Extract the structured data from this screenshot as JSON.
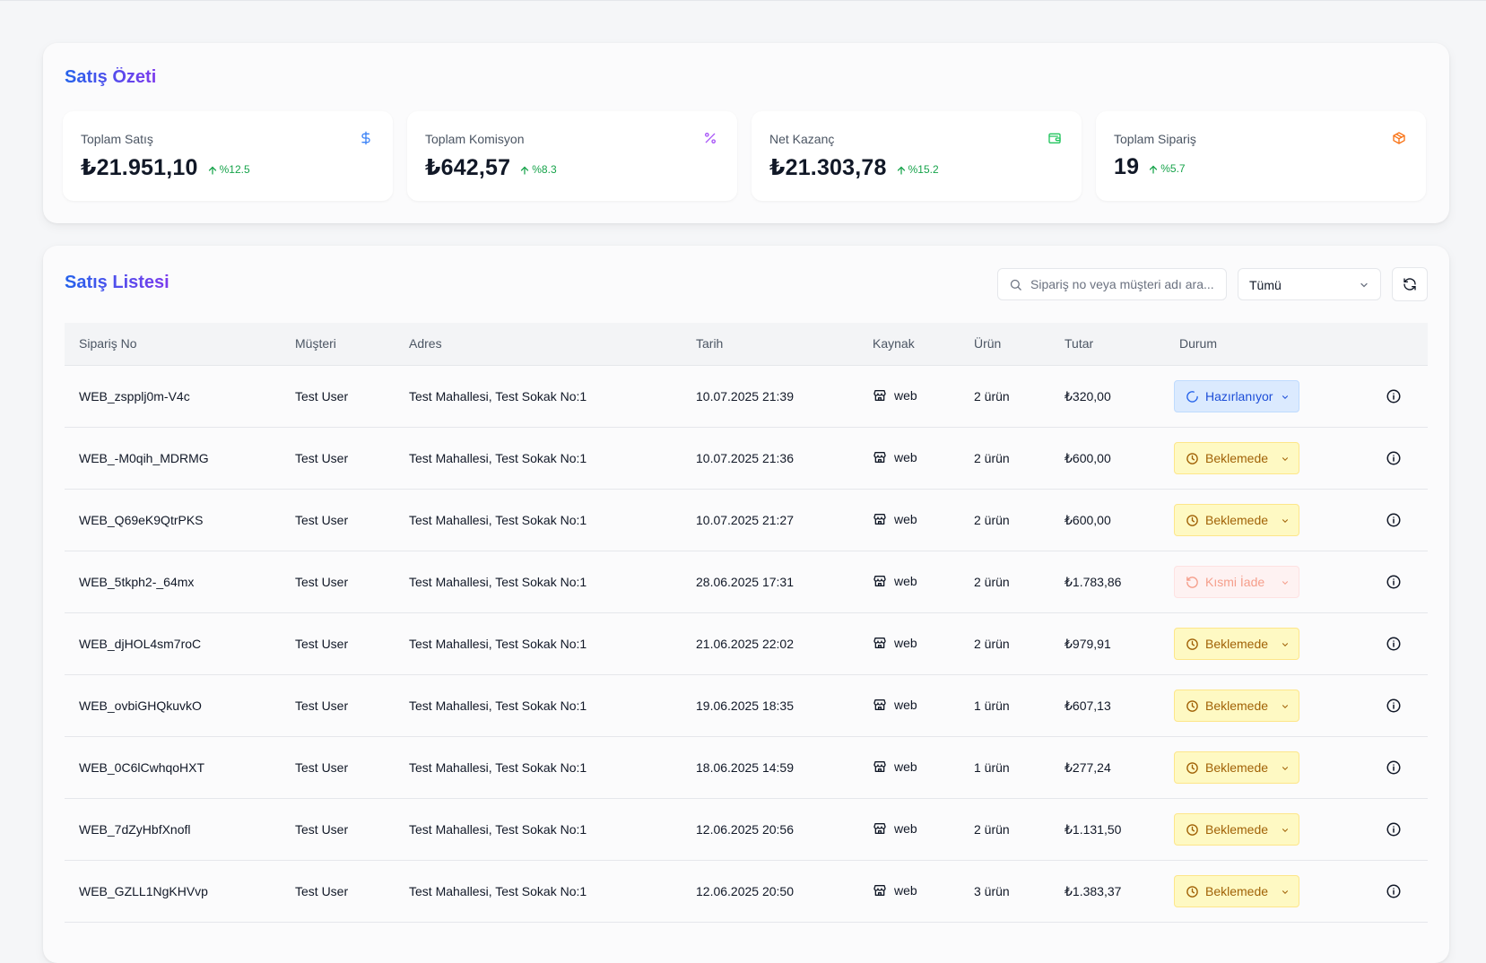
{
  "summary": {
    "title": "Satış Özeti",
    "stats": [
      {
        "label": "Toplam Satış",
        "value": "₺21.951,10",
        "change": "%12.5",
        "icon": "dollar-icon",
        "icon_color": "#3b82f6"
      },
      {
        "label": "Toplam Komisyon",
        "value": "₺642,57",
        "change": "%8.3",
        "icon": "percent-icon",
        "icon_color": "#a855f7"
      },
      {
        "label": "Net Kazanç",
        "value": "₺21.303,78",
        "change": "%15.2",
        "icon": "wallet-icon",
        "icon_color": "#22c55e"
      },
      {
        "label": "Toplam Sipariş",
        "value": "19",
        "change": "%5.7",
        "icon": "package-icon",
        "icon_color": "#f97316"
      }
    ]
  },
  "list": {
    "title": "Satış Listesi",
    "search_placeholder": "Sipariş no veya müşteri adı ara...",
    "filter_value": "Tümü",
    "columns": [
      "Sipariş No",
      "Müşteri",
      "Adres",
      "Tarih",
      "Kaynak",
      "Ürün",
      "Tutar",
      "Durum"
    ],
    "rows": [
      {
        "order": "WEB_zspplj0m-V4c",
        "customer": "Test User",
        "address": "Test Mahallesi, Test Sokak No:1",
        "date": "10.07.2025 21:39",
        "source": "web",
        "items": "2 ürün",
        "amount": "₺320,00",
        "status": "Hazırlanıyor",
        "status_type": "preparing"
      },
      {
        "order": "WEB_-M0qih_MDRMG",
        "customer": "Test User",
        "address": "Test Mahallesi, Test Sokak No:1",
        "date": "10.07.2025 21:36",
        "source": "web",
        "items": "2 ürün",
        "amount": "₺600,00",
        "status": "Beklemede",
        "status_type": "pending"
      },
      {
        "order": "WEB_Q69eK9QtrPKS",
        "customer": "Test User",
        "address": "Test Mahallesi, Test Sokak No:1",
        "date": "10.07.2025 21:27",
        "source": "web",
        "items": "2 ürün",
        "amount": "₺600,00",
        "status": "Beklemede",
        "status_type": "pending"
      },
      {
        "order": "WEB_5tkph2-_64mx",
        "customer": "Test User",
        "address": "Test Mahallesi, Test Sokak No:1",
        "date": "28.06.2025 17:31",
        "source": "web",
        "items": "2 ürün",
        "amount": "₺1.783,86",
        "status": "Kısmi İade",
        "status_type": "partial-refund"
      },
      {
        "order": "WEB_djHOL4sm7roC",
        "customer": "Test User",
        "address": "Test Mahallesi, Test Sokak No:1",
        "date": "21.06.2025 22:02",
        "source": "web",
        "items": "2 ürün",
        "amount": "₺979,91",
        "status": "Beklemede",
        "status_type": "pending"
      },
      {
        "order": "WEB_ovbiGHQkuvkO",
        "customer": "Test User",
        "address": "Test Mahallesi, Test Sokak No:1",
        "date": "19.06.2025 18:35",
        "source": "web",
        "items": "1 ürün",
        "amount": "₺607,13",
        "status": "Beklemede",
        "status_type": "pending"
      },
      {
        "order": "WEB_0C6lCwhqoHXT",
        "customer": "Test User",
        "address": "Test Mahallesi, Test Sokak No:1",
        "date": "18.06.2025 14:59",
        "source": "web",
        "items": "1 ürün",
        "amount": "₺277,24",
        "status": "Beklemede",
        "status_type": "pending"
      },
      {
        "order": "WEB_7dZyHbfXnofl",
        "customer": "Test User",
        "address": "Test Mahallesi, Test Sokak No:1",
        "date": "12.06.2025 20:56",
        "source": "web",
        "items": "2 ürün",
        "amount": "₺1.131,50",
        "status": "Beklemede",
        "status_type": "pending"
      },
      {
        "order": "WEB_GZLL1NgKHVvp",
        "customer": "Test User",
        "address": "Test Mahallesi, Test Sokak No:1",
        "date": "12.06.2025 20:50",
        "source": "web",
        "items": "3 ürün",
        "amount": "₺1.383,37",
        "status": "Beklemede",
        "status_type": "pending"
      }
    ]
  }
}
